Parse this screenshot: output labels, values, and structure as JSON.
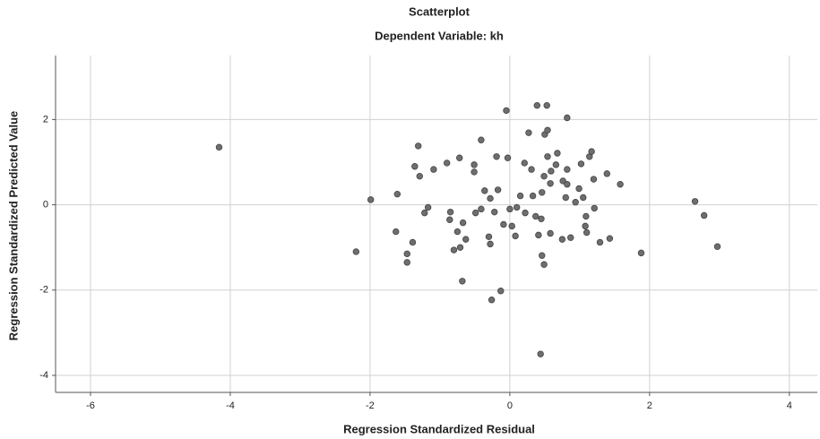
{
  "chart_data": {
    "type": "scatter",
    "title": "Scatterplot",
    "subtitle": "Dependent Variable: kh",
    "x_label": "Regression Standardized Residual",
    "y_label": "Regression Standardized Predicted Value",
    "xlim": [
      -6.5,
      4.4
    ],
    "ylim": [
      -4.4,
      3.5
    ],
    "xticks": [
      -6,
      -4,
      -2,
      0,
      2,
      4
    ],
    "yticks": [
      -4,
      -2,
      0,
      2
    ],
    "grid": true,
    "color": "#6e6e6e",
    "x": [
      -4.16,
      -1.99,
      -1.61,
      -2.2,
      -1.63,
      -1.39,
      -1.47,
      -1.47,
      -1.31,
      -1.36,
      -1.29,
      -1.22,
      -1.17,
      -1.09,
      -0.9,
      -0.85,
      -0.75,
      -0.72,
      -0.63,
      -0.71,
      -0.8,
      -0.68,
      -0.51,
      -0.51,
      -0.41,
      -0.36,
      -0.28,
      -0.49,
      -0.41,
      -0.3,
      -0.28,
      -0.22,
      -0.19,
      -0.17,
      -0.13,
      -0.26,
      -0.05,
      -0.03,
      0,
      0.03,
      0.08,
      0.1,
      0.15,
      0.21,
      0.27,
      0.31,
      0.33,
      0.37,
      0.39,
      0.41,
      0.44,
      0.46,
      0.53,
      0.5,
      0.54,
      0.54,
      0.49,
      0.45,
      0.46,
      0.49,
      0.59,
      0.58,
      0.58,
      0.66,
      0.68,
      0.75,
      0.76,
      0.8,
      0.82,
      0.82,
      0.82,
      0.87,
      0.94,
      0.99,
      1.02,
      1.05,
      1.08,
      1.09,
      1.1,
      1.14,
      1.17,
      1.2,
      1.21,
      1.29,
      1.39,
      1.43,
      1.58,
      1.88,
      2.65,
      2.78,
      2.97,
      -0.86,
      -0.67,
      -0.09,
      0.22
    ],
    "y": [
      1.35,
      0.12,
      0.25,
      -1.1,
      -0.63,
      -0.88,
      -1.15,
      -1.35,
      1.38,
      0.9,
      0.67,
      -0.19,
      -0.06,
      0.83,
      0.98,
      -0.17,
      -0.63,
      1.1,
      -0.81,
      -1.0,
      -1.06,
      -1.79,
      0.94,
      0.77,
      1.52,
      0.33,
      0.15,
      -0.19,
      -0.1,
      -0.75,
      -0.92,
      -0.17,
      1.13,
      0.35,
      -2.02,
      -2.23,
      2.21,
      1.1,
      -0.1,
      -0.5,
      -0.73,
      -0.06,
      0.21,
      0.98,
      1.69,
      0.83,
      0.21,
      -0.27,
      2.33,
      -0.71,
      -3.5,
      0.29,
      2.33,
      1.65,
      1.75,
      1.13,
      0.67,
      -0.33,
      -1.19,
      -1.4,
      0.79,
      0.5,
      -0.67,
      0.94,
      1.21,
      -0.81,
      0.56,
      0.17,
      0.83,
      2.04,
      0.48,
      -0.77,
      0.06,
      0.38,
      0.96,
      0.17,
      -0.5,
      -0.27,
      -0.65,
      1.13,
      1.25,
      0.6,
      -0.08,
      -0.88,
      0.73,
      -0.79,
      0.48,
      -1.13,
      0.08,
      -0.25,
      -0.98,
      -0.35,
      -0.42,
      -0.46,
      -0.19
    ]
  }
}
